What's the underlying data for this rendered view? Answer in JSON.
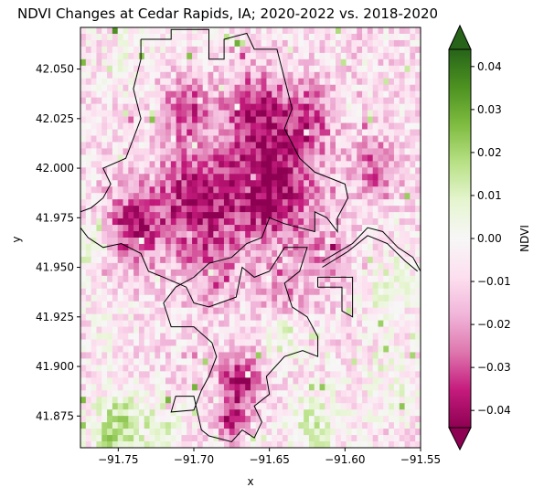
{
  "chart_data": {
    "type": "heatmap",
    "title": "NDVI Changes at Cedar Rapids, IA; 2020-2022 vs. 2018-2020",
    "xlabel": "x",
    "ylabel": "y",
    "xlim": [
      -91.775,
      -91.55
    ],
    "ylim": [
      41.859,
      42.071
    ],
    "xticks": [
      -91.75,
      -91.7,
      -91.65,
      -91.6,
      -91.55
    ],
    "xtick_labels": [
      "−91.75",
      "−91.70",
      "−91.65",
      "−91.60",
      "−91.55"
    ],
    "yticks": [
      41.875,
      41.9,
      41.925,
      41.95,
      41.975,
      42.0,
      42.025,
      42.05
    ],
    "ytick_labels": [
      "41.875",
      "41.900",
      "41.925",
      "41.950",
      "41.975",
      "42.000",
      "42.025",
      "42.050"
    ],
    "colorbar": {
      "label": "NDVI",
      "colormap": "PiYG",
      "range": [
        -0.044,
        0.044
      ],
      "extend": "both",
      "ticks": [
        -0.04,
        -0.03,
        -0.02,
        -0.01,
        0.0,
        0.01,
        0.02,
        0.03,
        0.04
      ],
      "tick_labels": [
        "−0.04",
        "−0.03",
        "−0.02",
        "−0.01",
        "0.00",
        "0.01",
        "0.02",
        "0.03",
        "0.04"
      ],
      "stops": [
        "#8e0152",
        "#c51b7d",
        "#de77ae",
        "#f1b6da",
        "#fde0ef",
        "#f7f7f7",
        "#e6f5d0",
        "#b8e186",
        "#7fbc41",
        "#4d9221",
        "#276419"
      ]
    },
    "grid": false,
    "raster": {
      "nx": 64,
      "ny": 66,
      "hotspots": [
        {
          "x": -91.65,
          "y": 41.99,
          "r": 0.03,
          "v": -0.034
        },
        {
          "x": -91.7,
          "y": 41.985,
          "r": 0.025,
          "v": -0.03
        },
        {
          "x": -91.74,
          "y": 41.97,
          "r": 0.02,
          "v": -0.028
        },
        {
          "x": -91.66,
          "y": 42.03,
          "r": 0.02,
          "v": -0.025
        },
        {
          "x": -91.705,
          "y": 42.03,
          "r": 0.015,
          "v": -0.024
        },
        {
          "x": -91.67,
          "y": 41.893,
          "r": 0.013,
          "v": -0.032
        },
        {
          "x": -91.675,
          "y": 41.873,
          "r": 0.009,
          "v": -0.03
        },
        {
          "x": -91.625,
          "y": 42.025,
          "r": 0.018,
          "v": -0.022
        },
        {
          "x": -91.61,
          "y": 41.955,
          "r": 0.015,
          "v": -0.014
        },
        {
          "x": -91.69,
          "y": 41.95,
          "r": 0.02,
          "v": -0.014
        },
        {
          "x": -91.64,
          "y": 41.935,
          "r": 0.015,
          "v": -0.012
        },
        {
          "x": -91.58,
          "y": 42.0,
          "r": 0.015,
          "v": -0.02
        },
        {
          "x": -91.75,
          "y": 41.868,
          "r": 0.018,
          "v": 0.028
        },
        {
          "x": -91.72,
          "y": 41.872,
          "r": 0.012,
          "v": 0.015
        },
        {
          "x": -91.62,
          "y": 41.87,
          "r": 0.018,
          "v": 0.02
        },
        {
          "x": -91.57,
          "y": 41.94,
          "r": 0.02,
          "v": 0.012
        },
        {
          "x": -91.57,
          "y": 41.89,
          "r": 0.02,
          "v": 0.01
        },
        {
          "x": -91.64,
          "y": 41.915,
          "r": 0.012,
          "v": 0.018
        },
        {
          "x": -91.77,
          "y": 41.96,
          "r": 0.015,
          "v": 0.014
        },
        {
          "x": -91.74,
          "y": 42.06,
          "r": 0.02,
          "v": 0.008
        },
        {
          "x": -91.755,
          "y": 41.92,
          "r": 0.015,
          "v": 0.006
        },
        {
          "x": -91.59,
          "y": 42.068,
          "r": 0.015,
          "v": -0.004
        }
      ]
    },
    "boundary_outline": {
      "main": [
        [
          -91.735,
          42.065
        ],
        [
          -91.715,
          42.065
        ],
        [
          -91.715,
          42.07
        ],
        [
          -91.69,
          42.07
        ],
        [
          -91.69,
          42.055
        ],
        [
          -91.68,
          42.055
        ],
        [
          -91.68,
          42.065
        ],
        [
          -91.665,
          42.068
        ],
        [
          -91.66,
          42.06
        ],
        [
          -91.645,
          42.06
        ],
        [
          -91.64,
          42.045
        ],
        [
          -91.635,
          42.03
        ],
        [
          -91.64,
          42.02
        ],
        [
          -91.63,
          42.005
        ],
        [
          -91.62,
          41.998
        ],
        [
          -91.61,
          41.995
        ],
        [
          -91.6,
          41.992
        ],
        [
          -91.598,
          41.985
        ],
        [
          -91.605,
          41.975
        ],
        [
          -91.605,
          41.968
        ],
        [
          -91.612,
          41.975
        ],
        [
          -91.62,
          41.978
        ],
        [
          -91.62,
          41.968
        ],
        [
          -91.63,
          41.97
        ],
        [
          -91.64,
          41.972
        ],
        [
          -91.65,
          41.975
        ],
        [
          -91.655,
          41.965
        ],
        [
          -91.665,
          41.962
        ],
        [
          -91.675,
          41.955
        ],
        [
          -91.69,
          41.952
        ],
        [
          -91.7,
          41.945
        ],
        [
          -91.712,
          41.94
        ],
        [
          -91.72,
          41.932
        ],
        [
          -91.715,
          41.92
        ],
        [
          -91.7,
          41.92
        ],
        [
          -91.688,
          41.912
        ],
        [
          -91.685,
          41.905
        ],
        [
          -91.69,
          41.895
        ],
        [
          -91.695,
          41.888
        ],
        [
          -91.7,
          41.878
        ],
        [
          -91.715,
          41.877
        ],
        [
          -91.712,
          41.885
        ],
        [
          -91.7,
          41.885
        ],
        [
          -91.695,
          41.868
        ],
        [
          -91.69,
          41.865
        ],
        [
          -91.675,
          41.862
        ],
        [
          -91.668,
          41.868
        ],
        [
          -91.66,
          41.864
        ],
        [
          -91.655,
          41.872
        ],
        [
          -91.66,
          41.88
        ],
        [
          -91.65,
          41.886
        ],
        [
          -91.652,
          41.895
        ],
        [
          -91.64,
          41.905
        ],
        [
          -91.628,
          41.908
        ],
        [
          -91.618,
          41.905
        ],
        [
          -91.618,
          41.915
        ],
        [
          -91.625,
          41.925
        ],
        [
          -91.635,
          41.93
        ],
        [
          -91.64,
          41.942
        ],
        [
          -91.63,
          41.948
        ],
        [
          -91.625,
          41.96
        ],
        [
          -91.64,
          41.96
        ],
        [
          -91.65,
          41.948
        ],
        [
          -91.66,
          41.945
        ],
        [
          -91.668,
          41.95
        ],
        [
          -91.672,
          41.935
        ],
        [
          -91.69,
          41.93
        ],
        [
          -91.7,
          41.932
        ],
        [
          -91.705,
          41.94
        ],
        [
          -91.72,
          41.945
        ],
        [
          -91.73,
          41.948
        ],
        [
          -91.735,
          41.957
        ],
        [
          -91.748,
          41.962
        ],
        [
          -91.76,
          41.96
        ],
        [
          -91.77,
          41.965
        ],
        [
          -91.775,
          41.97
        ],
        [
          -91.775,
          41.978
        ],
        [
          -91.768,
          41.98
        ],
        [
          -91.76,
          41.985
        ],
        [
          -91.755,
          41.992
        ],
        [
          -91.76,
          42.0
        ],
        [
          -91.745,
          42.005
        ],
        [
          -91.74,
          42.015
        ],
        [
          -91.735,
          42.025
        ],
        [
          -91.74,
          42.04
        ],
        [
          -91.735,
          42.055
        ],
        [
          -91.735,
          42.065
        ]
      ],
      "river_north": [
        [
          -91.615,
          41.953
        ],
        [
          -91.595,
          41.962
        ],
        [
          -91.585,
          41.97
        ],
        [
          -91.575,
          41.968
        ],
        [
          -91.565,
          41.96
        ],
        [
          -91.555,
          41.955
        ],
        [
          -91.55,
          41.948
        ]
      ],
      "river_south": [
        [
          -91.615,
          41.95
        ],
        [
          -91.598,
          41.958
        ],
        [
          -91.585,
          41.966
        ],
        [
          -91.572,
          41.962
        ],
        [
          -91.56,
          41.953
        ],
        [
          -91.552,
          41.948
        ]
      ],
      "east_block": [
        [
          -91.618,
          41.94
        ],
        [
          -91.602,
          41.94
        ],
        [
          -91.602,
          41.928
        ],
        [
          -91.595,
          41.925
        ],
        [
          -91.595,
          41.945
        ],
        [
          -91.618,
          41.945
        ],
        [
          -91.618,
          41.94
        ]
      ]
    }
  }
}
